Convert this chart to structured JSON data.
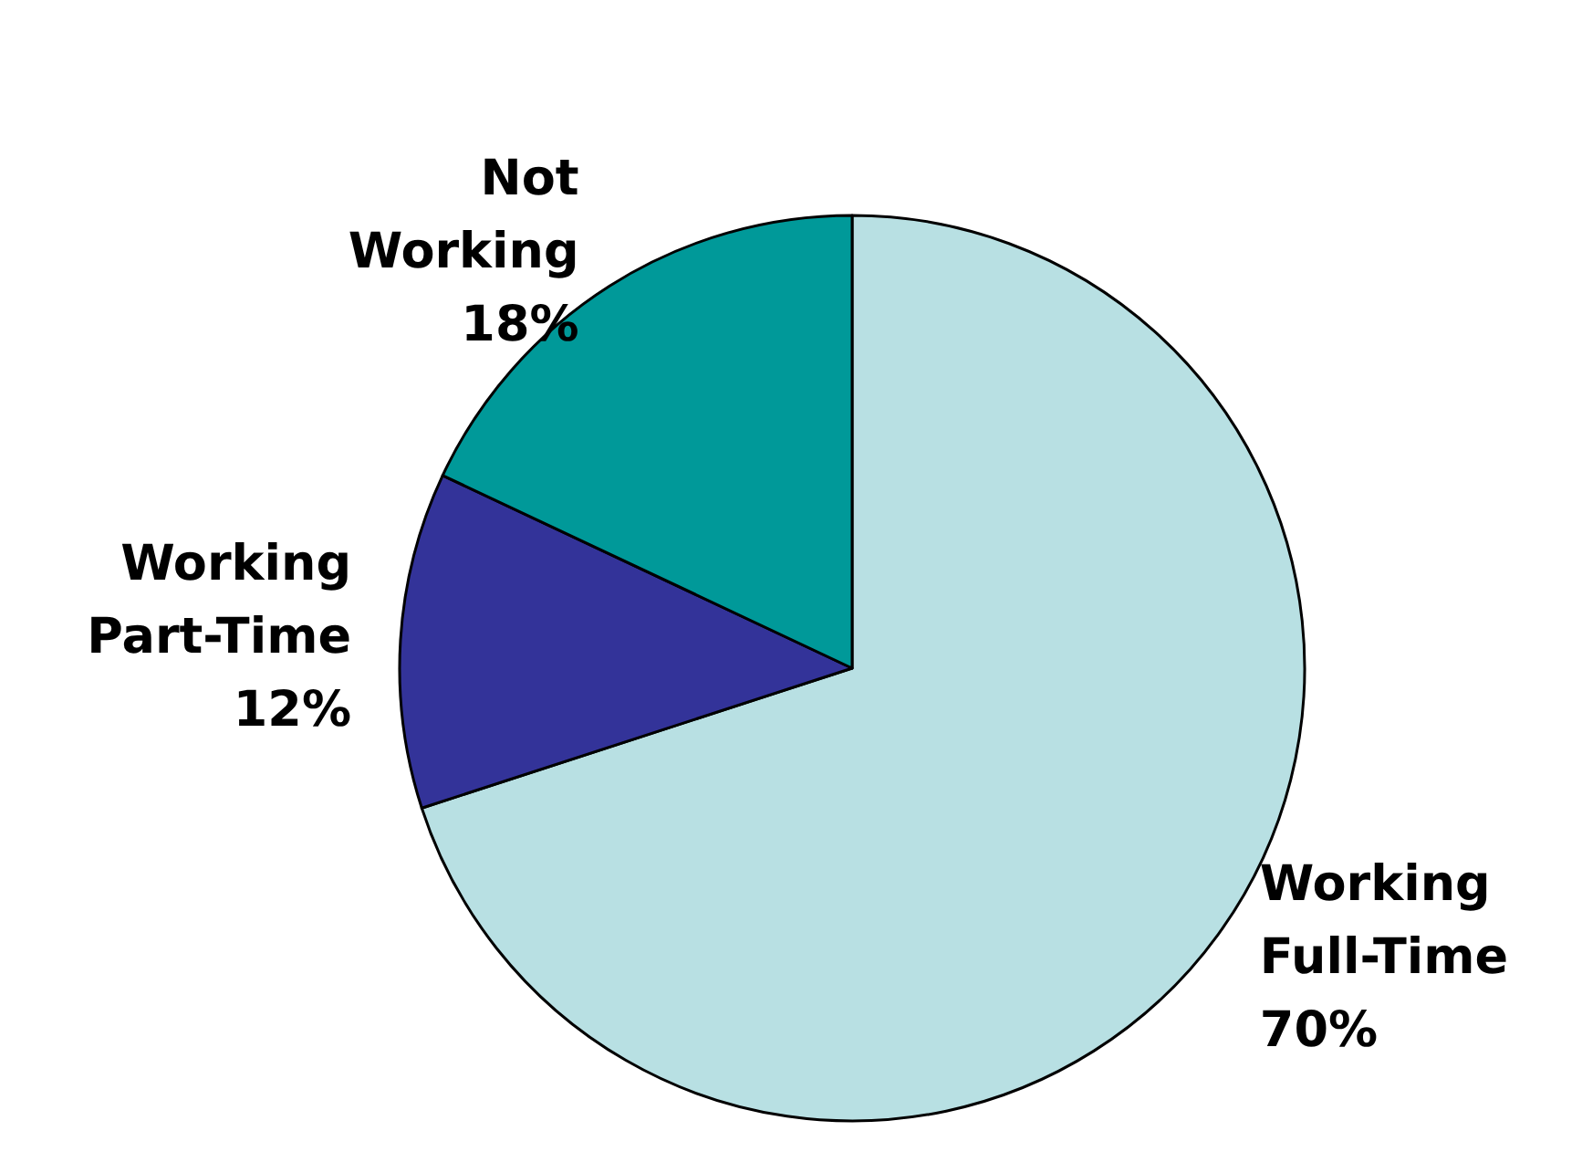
{
  "chart_data": {
    "type": "pie",
    "categories": [
      "Working Full-Time",
      "Working Part-Time",
      "Not Working"
    ],
    "values": [
      70,
      12,
      18
    ],
    "value_labels": [
      "70%",
      "12%",
      "18%"
    ],
    "colors": [
      "#b8e0e3",
      "#333399",
      "#009999"
    ]
  }
}
